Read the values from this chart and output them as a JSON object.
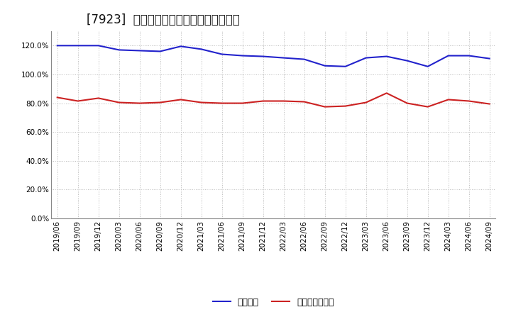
{
  "title_full": "[7923]  固定比率、固定長期適合率の推移",
  "x_labels": [
    "2019/06",
    "2019/09",
    "2019/12",
    "2020/03",
    "2020/06",
    "2020/09",
    "2020/12",
    "2021/03",
    "2021/06",
    "2021/09",
    "2021/12",
    "2022/03",
    "2022/06",
    "2022/09",
    "2022/12",
    "2023/03",
    "2023/06",
    "2023/09",
    "2023/12",
    "2024/03",
    "2024/06",
    "2024/09"
  ],
  "fixed_ratio": [
    120.0,
    120.0,
    120.0,
    117.0,
    116.5,
    116.0,
    119.5,
    117.5,
    114.0,
    113.0,
    112.5,
    111.5,
    110.5,
    106.0,
    105.5,
    111.5,
    112.5,
    109.5,
    105.5,
    113.0,
    113.0,
    111.0
  ],
  "fixed_long_ratio": [
    84.0,
    81.5,
    83.5,
    80.5,
    80.0,
    80.5,
    82.5,
    80.5,
    80.0,
    80.0,
    81.5,
    81.5,
    81.0,
    77.5,
    78.0,
    80.5,
    87.0,
    80.0,
    77.5,
    82.5,
    81.5,
    79.5
  ],
  "line1_color": "#2222cc",
  "line2_color": "#cc2222",
  "line1_label": "固定比率",
  "line2_label": "固定長期適合率",
  "ylim": [
    0,
    130
  ],
  "yticks": [
    0,
    20,
    40,
    60,
    80,
    100,
    120
  ],
  "background_color": "#ffffff",
  "plot_bg_color": "#ffffff",
  "grid_color": "#bbbbbb",
  "title_fontsize": 12,
  "tick_fontsize": 7.5,
  "legend_fontsize": 9
}
